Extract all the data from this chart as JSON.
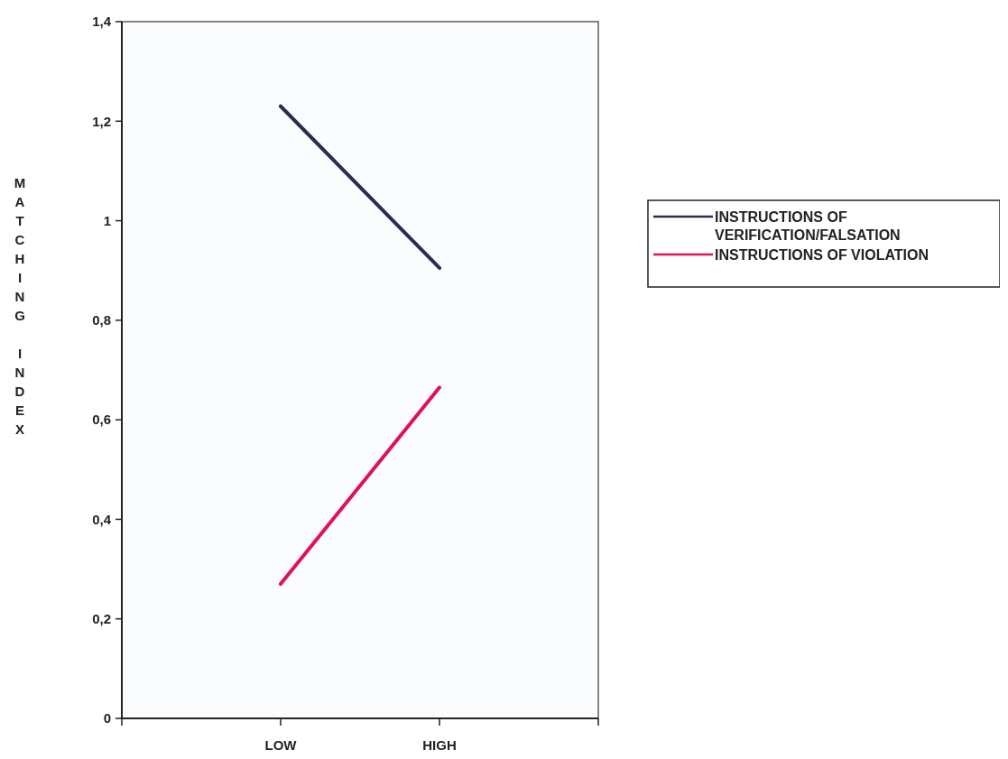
{
  "chart_data": {
    "type": "line",
    "ylabel": "MATCHING INDEX",
    "categories": [
      "LOW",
      "HIGH"
    ],
    "series": [
      {
        "name": "INSTRUCTIONS OF VERIFICATION/FALSATION",
        "color": "#2b2d4f",
        "values": [
          1.23,
          0.905
        ]
      },
      {
        "name": "INSTRUCTIONS OF VIOLATION",
        "color": "#e0105a",
        "values": [
          0.27,
          0.665
        ]
      }
    ],
    "ylim": [
      0,
      1.4
    ],
    "yticks": [
      0,
      {
        "value": 0.2,
        "label": "0,2"
      },
      {
        "value": 0.4,
        "label": "0,4"
      },
      {
        "value": 0.6,
        "label": "0,6"
      },
      {
        "value": 0.8,
        "label": "0,8"
      },
      1,
      {
        "value": 1.2,
        "label": "1,2"
      },
      {
        "value": 1.4,
        "label": "1,4"
      }
    ],
    "grid": false,
    "legend": "right",
    "marker": "none",
    "line_style": "solid"
  }
}
